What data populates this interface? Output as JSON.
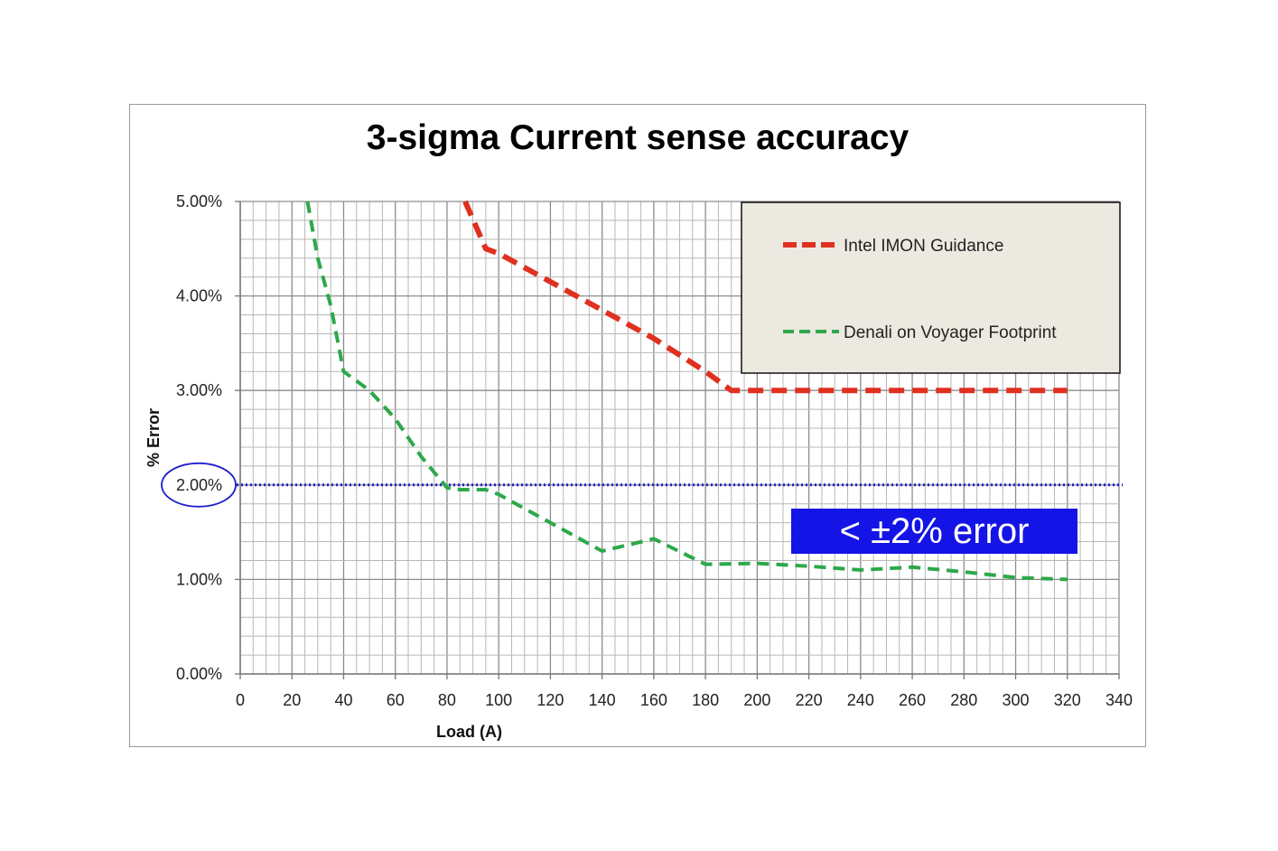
{
  "chart_data": {
    "type": "line",
    "title": "3-sigma Current sense accuracy",
    "xlabel": "Load (A)",
    "ylabel": "% Error",
    "xlim": [
      0,
      340
    ],
    "ylim": [
      0,
      5
    ],
    "x_ticks": [
      "0",
      "20",
      "40",
      "60",
      "80",
      "100",
      "120",
      "140",
      "160",
      "180",
      "200",
      "220",
      "240",
      "260",
      "280",
      "300",
      "320",
      "340"
    ],
    "y_ticks": [
      "0.00%",
      "1.00%",
      "2.00%",
      "3.00%",
      "4.00%",
      "5.00%"
    ],
    "grid": true,
    "legend_position": "top-right",
    "series": [
      {
        "name": "Intel IMON Guidance",
        "color": "#e03020",
        "style": "dashed",
        "x": [
          87,
          95,
          100,
          120,
          140,
          160,
          180,
          190,
          200,
          220,
          240,
          260,
          280,
          300,
          320
        ],
        "y": [
          5.0,
          4.5,
          4.45,
          4.15,
          3.85,
          3.55,
          3.2,
          3.0,
          3.0,
          3.0,
          3.0,
          3.0,
          3.0,
          3.0,
          3.0
        ]
      },
      {
        "name": "Denali on Voyager Footprint",
        "color": "#2da84a",
        "style": "dashed",
        "x": [
          26,
          30,
          35,
          40,
          50,
          60,
          70,
          80,
          85,
          95,
          100,
          120,
          140,
          160,
          180,
          200,
          220,
          240,
          260,
          280,
          300,
          320
        ],
        "y": [
          5.0,
          4.4,
          3.9,
          3.2,
          3.0,
          2.7,
          2.3,
          1.97,
          1.95,
          1.95,
          1.9,
          1.6,
          1.3,
          1.43,
          1.16,
          1.17,
          1.14,
          1.1,
          1.13,
          1.08,
          1.02,
          1.0
        ]
      }
    ],
    "reference_line": {
      "y": 2.0,
      "color": "#1f1fcc",
      "style": "dotted"
    },
    "highlight_tick": "2.00%",
    "annotation": {
      "text": "< ±2% error",
      "background": "#1414e6",
      "color": "#ffffff"
    }
  }
}
